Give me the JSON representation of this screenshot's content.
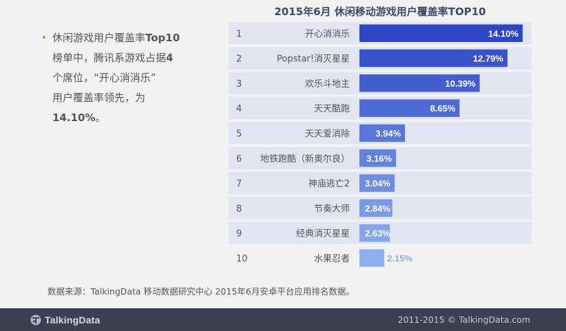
{
  "chart_data": {
    "type": "bar",
    "orientation": "horizontal",
    "title": "2015年6月 休闲移动游戏用户覆盖率TOP10",
    "ranks": [
      "1",
      "2",
      "3",
      "4",
      "5",
      "6",
      "7",
      "8",
      "9",
      "10"
    ],
    "categories": [
      "开心消消乐",
      "Popstar!消灭星星",
      "欢乐斗地主",
      "天天酷跑",
      "天天爱消除",
      "地铁跑酷（新奥尔良）",
      "神庙逃亡2",
      "节奏大师",
      "经典消灭星星",
      "水果忍者"
    ],
    "values": [
      14.1,
      12.79,
      10.39,
      8.65,
      3.94,
      3.16,
      3.04,
      2.84,
      2.63,
      2.15
    ],
    "value_labels": [
      "14.10%",
      "12.79%",
      "10.39%",
      "8.65%",
      "3.94%",
      "3.16%",
      "3.04%",
      "2.84%",
      "2.63%",
      "2.15%"
    ],
    "xlim": [
      0,
      14.1
    ],
    "colors": {
      "bar_dark": "#2f47c4",
      "bar_light": "#8fb0f0",
      "row_band": "#e0e5f1",
      "bar_label": "#ffffff"
    }
  },
  "summary": {
    "bullet": "•",
    "lines": [
      [
        {
          "t": "休闲游戏用户覆盖率"
        },
        {
          "t": "Top10",
          "b": true
        }
      ],
      [
        {
          "t": "榜单中，腾讯系游戏占据"
        },
        {
          "t": "4",
          "b": true
        }
      ],
      [
        {
          "t": "个席位，“开心消消乐”"
        }
      ],
      [
        {
          "t": "用户覆盖率领先，为"
        }
      ],
      [
        {
          "t": "14.10%",
          "b": true
        },
        {
          "t": "。"
        }
      ]
    ]
  },
  "source_note": "数据来源：TalkingData 移动数据研究中心 2015年6月安卓平台应用排名数据。",
  "footer": {
    "logo_text": "TalkingData",
    "logo_icon": "talkingdata-logo-icon",
    "copyright": "2011-2015 © TalkingData.com",
    "background": "#3e4052"
  }
}
